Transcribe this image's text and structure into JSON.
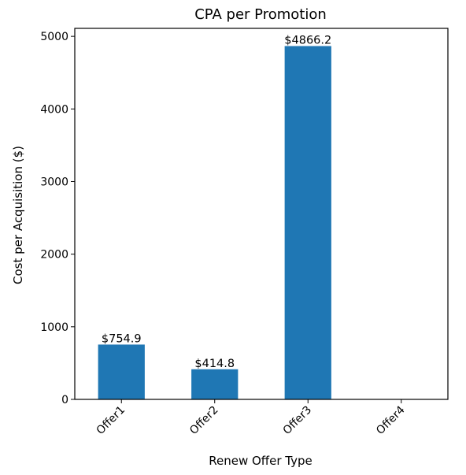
{
  "chart_data": {
    "type": "bar",
    "title": "CPA per Promotion",
    "xlabel": "Renew Offer Type",
    "ylabel": "Cost per Acquisition ($)",
    "categories": [
      "Offer1",
      "Offer2",
      "Offer3",
      "Offer4"
    ],
    "values": [
      754.9,
      414.8,
      4866.2,
      0
    ],
    "data_labels": [
      "$754.9",
      "$414.8",
      "$4866.2",
      ""
    ],
    "ylim": [
      0,
      5110
    ],
    "yticks": [
      0,
      1000,
      2000,
      3000,
      4000,
      5000
    ],
    "ytick_labels": [
      "0",
      "1000",
      "2000",
      "3000",
      "4000",
      "5000"
    ],
    "grid": false,
    "legend": "none",
    "colors": {
      "bar": "#1f77b4",
      "axes": "#000000",
      "background": "#ffffff"
    }
  }
}
